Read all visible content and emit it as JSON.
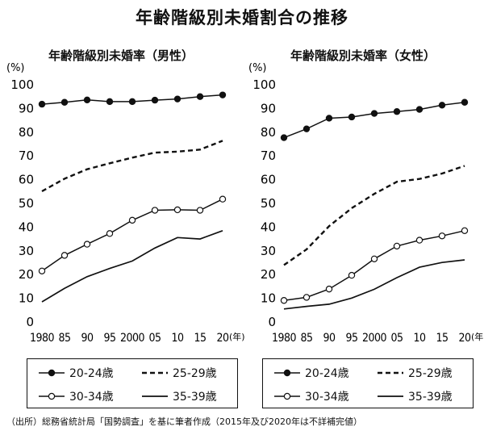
{
  "title": "年齢階級別未婚割合の推移",
  "source": "（出所）総務省統計局「国勢調査」を基に筆者作成（2015年及び2020年は不詳補完値）",
  "chart_data": [
    {
      "type": "line",
      "title": "年齢階級別未婚率（男性）",
      "ylabel": "(%)",
      "xunit": "(年)",
      "ylim": [
        0,
        100
      ],
      "yticks": [
        0,
        10,
        20,
        30,
        40,
        50,
        60,
        70,
        80,
        90,
        100
      ],
      "x": [
        1980,
        1985,
        1990,
        1995,
        2000,
        2005,
        2010,
        2015,
        2020
      ],
      "xticklabels": [
        "1980",
        "85",
        "90",
        "95",
        "2000",
        "05",
        "10",
        "15",
        "20"
      ],
      "grid": false,
      "series": [
        {
          "name": "20-24歳",
          "style": "solid-filled-marker",
          "values": [
            91.8,
            92.6,
            93.6,
            92.9,
            92.9,
            93.5,
            94.0,
            95.0,
            95.7
          ]
        },
        {
          "name": "25-29歳",
          "style": "dashed",
          "values": [
            55.1,
            60.4,
            64.4,
            66.9,
            69.3,
            71.4,
            71.8,
            72.7,
            76.4
          ]
        },
        {
          "name": "30-34歳",
          "style": "solid-open-marker",
          "values": [
            21.5,
            28.1,
            32.8,
            37.3,
            42.9,
            47.1,
            47.3,
            47.1,
            51.8
          ]
        },
        {
          "name": "35-39歳",
          "style": "solid",
          "values": [
            8.5,
            14.2,
            19.1,
            22.6,
            25.7,
            31.2,
            35.6,
            35.0,
            38.5
          ]
        }
      ]
    },
    {
      "type": "line",
      "title": "年齢階級別未婚率（女性）",
      "ylabel": "(%)",
      "xunit": "(年)",
      "ylim": [
        0,
        100
      ],
      "yticks": [
        0,
        10,
        20,
        30,
        40,
        50,
        60,
        70,
        80,
        90,
        100
      ],
      "x": [
        1980,
        1985,
        1990,
        1995,
        2000,
        2005,
        2010,
        2015,
        2020
      ],
      "xticklabels": [
        "1980",
        "85",
        "90",
        "95",
        "2000",
        "05",
        "10",
        "15",
        "20"
      ],
      "grid": false,
      "series": [
        {
          "name": "20-24歳",
          "style": "solid-filled-marker",
          "values": [
            77.7,
            81.4,
            85.9,
            86.4,
            87.9,
            88.7,
            89.6,
            91.4,
            92.6
          ]
        },
        {
          "name": "25-29歳",
          "style": "dashed",
          "values": [
            24.0,
            30.6,
            40.4,
            48.0,
            54.0,
            59.1,
            60.3,
            62.6,
            65.8
          ]
        },
        {
          "name": "30-34歳",
          "style": "solid-open-marker",
          "values": [
            9.1,
            10.4,
            13.9,
            19.7,
            26.6,
            32.0,
            34.5,
            36.3,
            38.5
          ]
        },
        {
          "name": "35-39歳",
          "style": "solid",
          "values": [
            5.5,
            6.6,
            7.5,
            10.1,
            13.8,
            18.7,
            23.1,
            25.1,
            26.2
          ]
        }
      ]
    }
  ]
}
